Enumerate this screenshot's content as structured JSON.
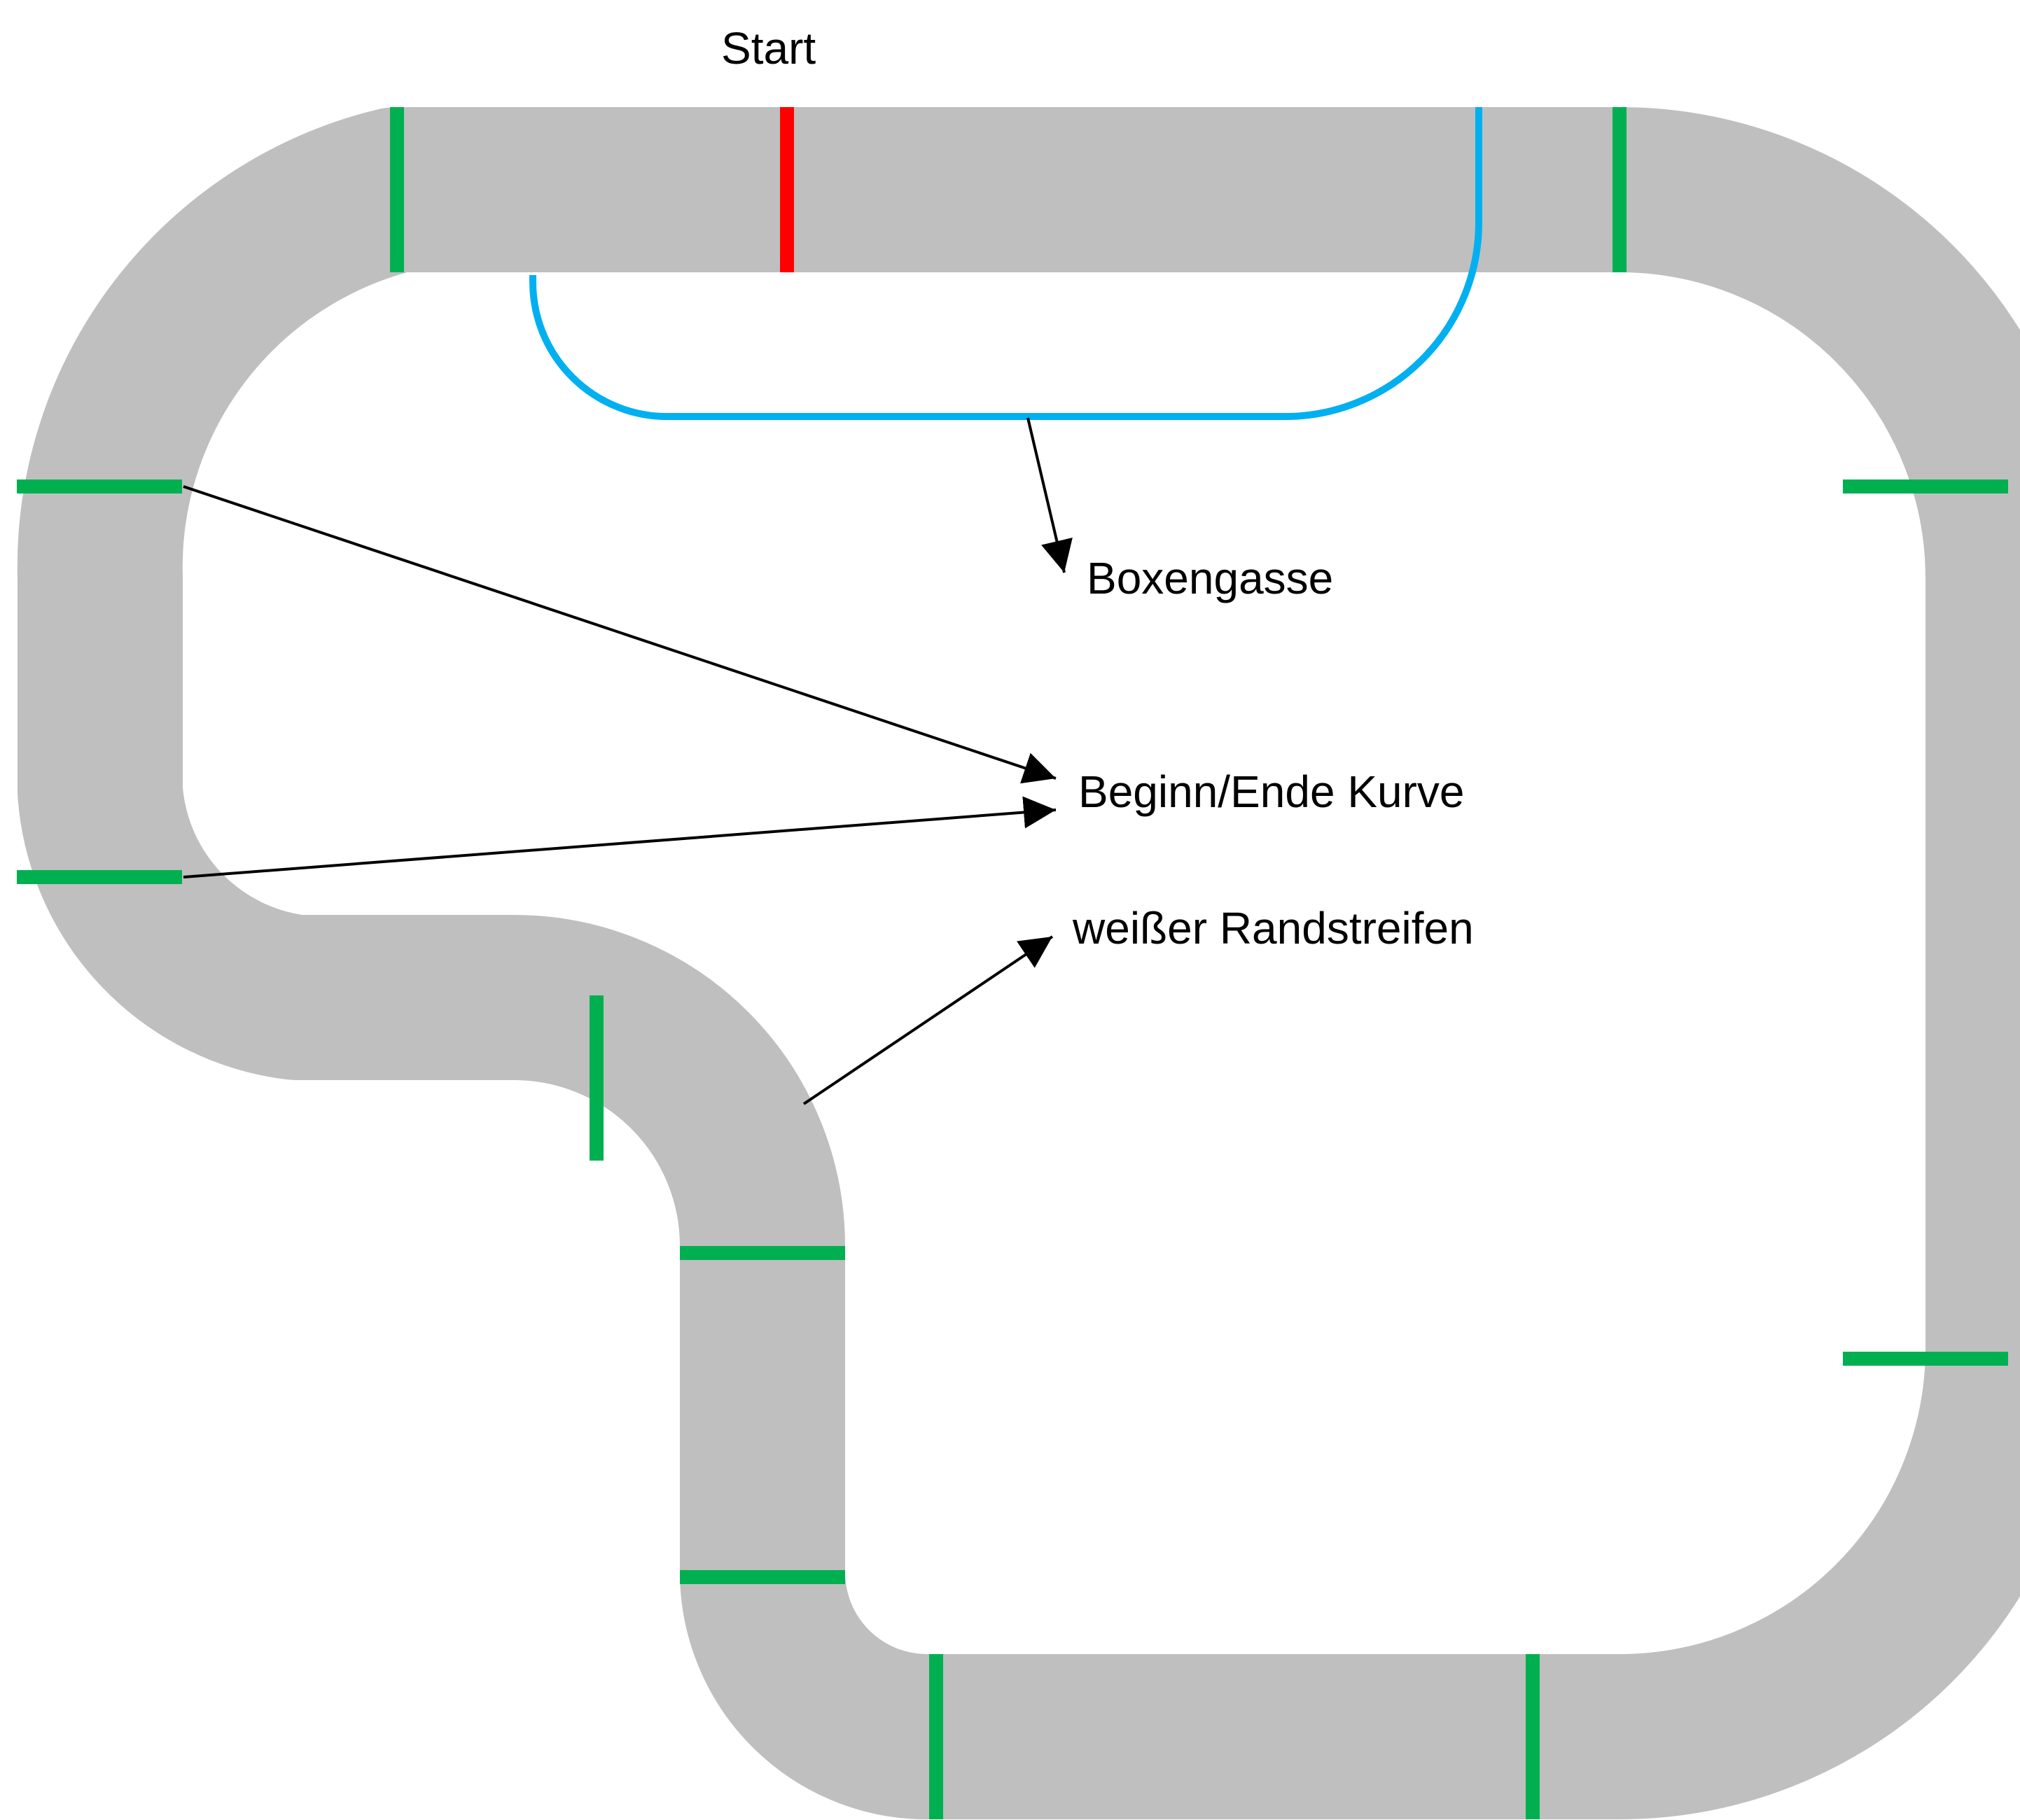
{
  "labels": {
    "start": "Start",
    "pit_lane": "Boxengasse",
    "curve_marker": "Beginn/Ende Kurve",
    "white_edge": "weißer Randstreifen"
  },
  "colors": {
    "track": "#bfbfbf",
    "background": "#ffffff",
    "curve_marker": "#00b050",
    "start_line": "#ff0000",
    "pit_lane": "#00b0f0",
    "annotation": "#000000"
  }
}
